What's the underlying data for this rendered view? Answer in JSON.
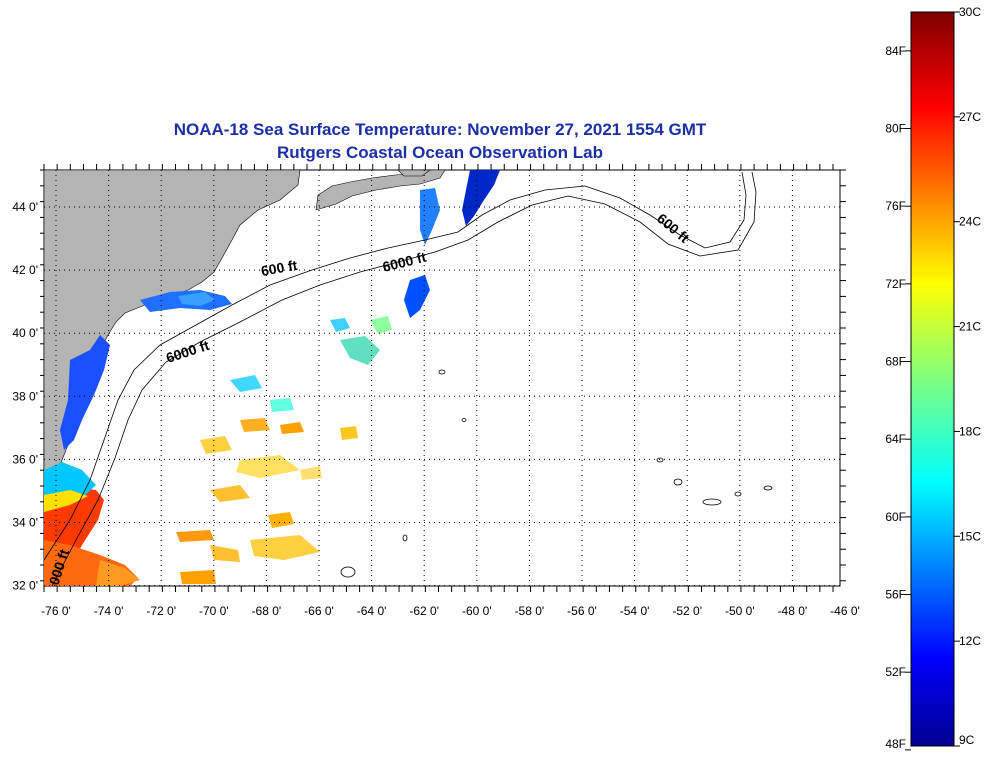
{
  "title": {
    "line1": "NOAA-18 Sea Surface Temperature:  November 27, 2021 1554 GMT",
    "line2": "Rutgers Coastal Ocean Observation Lab"
  },
  "map": {
    "lat_labels": [
      "44 0'",
      "42 0'",
      "40 0'",
      "38 0'",
      "36 0'",
      "34 0'",
      "32 0'"
    ],
    "lon_labels": [
      "-76 0'",
      "-74 0'",
      "-72 0'",
      "-70 0'",
      "-68 0'",
      "-66 0'",
      "-64 0'",
      "-62 0'",
      "-60 0'",
      "-58 0'",
      "-56 0'",
      "-54 0'",
      "-52 0'",
      "-50 0'",
      "-48 0'",
      "-46 0'"
    ],
    "contour_labels": [
      "600 ft",
      "6000 ft",
      "6000 ft",
      "600 ft",
      "000 ft"
    ],
    "colors": {
      "land": "#b4b4b4",
      "ocean": "#ffffff",
      "grid": "#000000"
    }
  },
  "colorbar": {
    "fahrenheit_labels": [
      "84F",
      "80F",
      "76F",
      "72F",
      "68F",
      "64F",
      "60F",
      "56F",
      "52F",
      "48F"
    ],
    "celsius_labels": [
      "30C",
      "27C",
      "24C",
      "21C",
      "18C",
      "15C",
      "12C",
      "9C"
    ],
    "range_c": [
      9,
      30
    ]
  }
}
